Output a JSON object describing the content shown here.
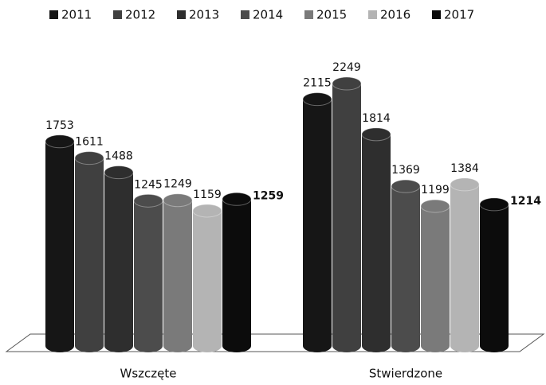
{
  "chart_data": {
    "type": "bar3d",
    "categories": [
      "Wszczęte",
      "Stwierdzone"
    ],
    "series": [
      {
        "name": "2011",
        "color": "#161616",
        "values": [
          1753,
          2115
        ]
      },
      {
        "name": "2012",
        "color": "#404040",
        "values": [
          1611,
          2249
        ]
      },
      {
        "name": "2013",
        "color": "#2e2e2e",
        "values": [
          1488,
          1814
        ]
      },
      {
        "name": "2014",
        "color": "#4c4c4c",
        "values": [
          1245,
          1369
        ]
      },
      {
        "name": "2015",
        "color": "#7a7a7a",
        "values": [
          1249,
          1199
        ]
      },
      {
        "name": "2016",
        "color": "#b4b4b4",
        "values": [
          1159,
          1384
        ]
      },
      {
        "name": "2017",
        "color": "#0c0c0c",
        "values": [
          1259,
          1214
        ]
      }
    ],
    "legend": "top"
  }
}
